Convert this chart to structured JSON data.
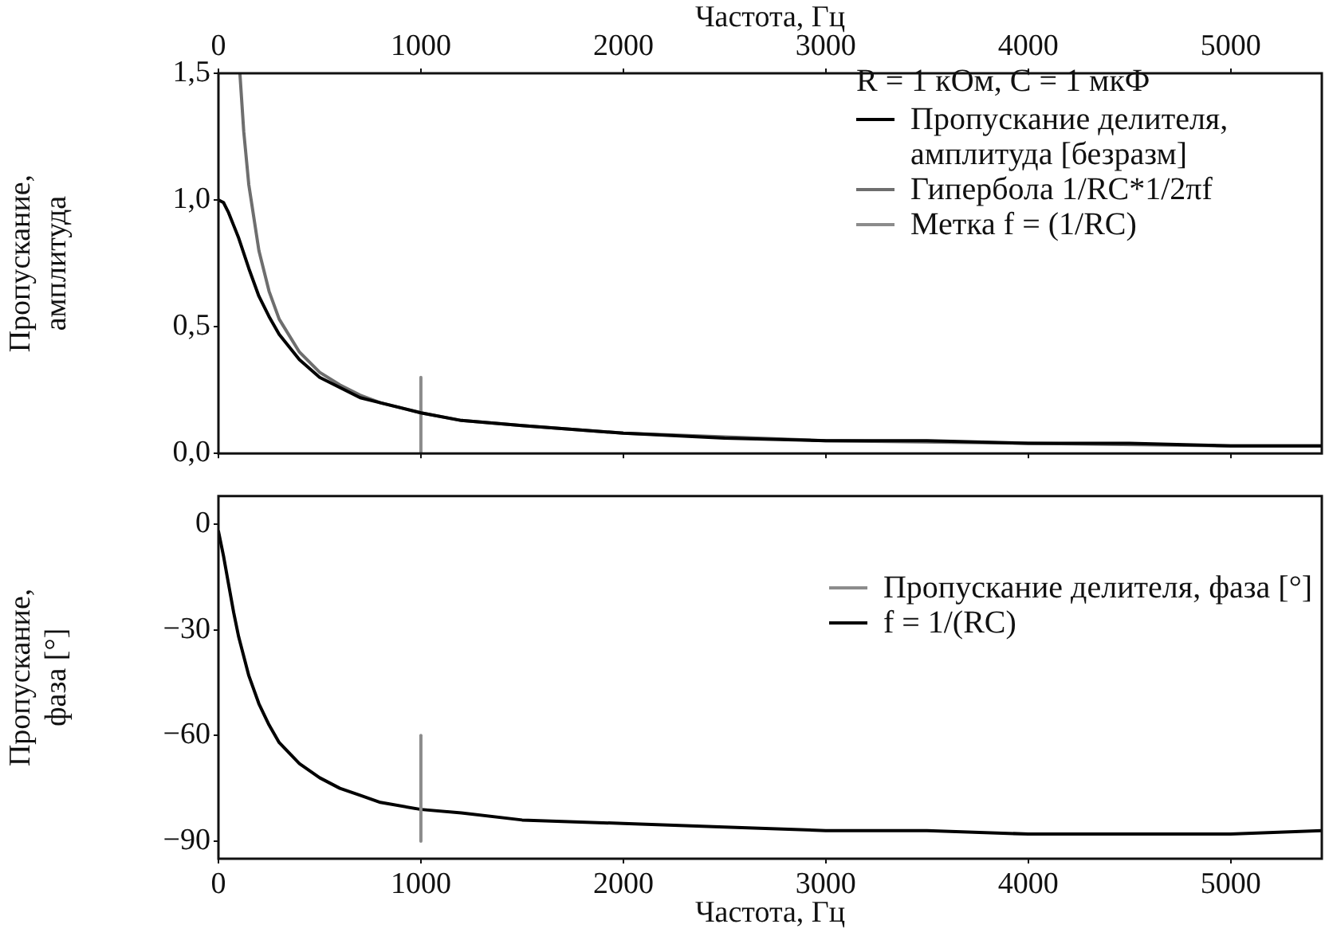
{
  "chart_data": [
    {
      "type": "line",
      "x2label": "Частота, Гц",
      "ylabel": "Пропускание, амплитуда",
      "legend_title": "R = 1 кОм, C = 1 мкФ",
      "xlim": [
        0,
        5450
      ],
      "xticks": [
        0,
        1000,
        2000,
        3000,
        4000,
        5000
      ],
      "x2lim": [
        0,
        5450
      ],
      "x2ticks": [
        0,
        1000,
        2000,
        3000,
        4000,
        5000
      ],
      "ylim": [
        0,
        1.5
      ],
      "yticks": [
        {
          "value": 0,
          "label": "0,0"
        },
        {
          "value": 0.5,
          "label": "0,5"
        },
        {
          "value": 1,
          "label": "1,0"
        },
        {
          "value": 1.5,
          "label": "1,5"
        }
      ],
      "grid": false,
      "legend": "top right",
      "marker": "none",
      "line_style": "solid",
      "tick_labels": "y",
      "series": [
        {
          "name": "Пропускание делителя, амплитуда [безразм]",
          "color": "#000000",
          "x": [
            0,
            25,
            50,
            75,
            100,
            150,
            200,
            250,
            300,
            400,
            500,
            600,
            700,
            800,
            1000,
            1200,
            1500,
            2000,
            2500,
            3000,
            3500,
            4000,
            4500,
            5000,
            5450
          ],
          "values": [
            1.0,
            0.99,
            0.95,
            0.9,
            0.85,
            0.73,
            0.62,
            0.54,
            0.47,
            0.37,
            0.3,
            0.26,
            0.22,
            0.2,
            0.16,
            0.13,
            0.11,
            0.08,
            0.06,
            0.05,
            0.05,
            0.04,
            0.04,
            0.03,
            0.03
          ]
        },
        {
          "name": "Гипербола  1/RC*1/2πf",
          "color": "#6e6e6e",
          "x": [
            106,
            125,
            150,
            200,
            250,
            300,
            400,
            500,
            600,
            700,
            800,
            1000,
            1200,
            1500,
            2000,
            3000,
            4000,
            5000,
            5450
          ],
          "values": [
            1.5,
            1.27,
            1.06,
            0.8,
            0.64,
            0.53,
            0.4,
            0.32,
            0.27,
            0.23,
            0.2,
            0.16,
            0.13,
            0.11,
            0.08,
            0.05,
            0.04,
            0.03,
            0.03
          ]
        },
        {
          "name": "Метка f = (1/RC)",
          "color": "#8c8c8c",
          "x": [
            1000,
            1000
          ],
          "values": [
            0,
            0.3
          ]
        }
      ]
    },
    {
      "type": "line",
      "xlabel": "Частота, Гц",
      "ylabel": "Пропускание, фаза [°]",
      "xlim": [
        0,
        5450
      ],
      "xticks": [
        0,
        1000,
        2000,
        3000,
        4000,
        5000
      ],
      "ylim": [
        -95,
        8
      ],
      "yticks": [
        0,
        {
          "value": -30,
          "label": "−30"
        },
        {
          "value": -60,
          "label": "−60"
        },
        {
          "value": -90,
          "label": "−90"
        }
      ],
      "grid": false,
      "legend": "right",
      "marker": "none",
      "line_style": "solid",
      "series": [
        {
          "name": "Пропускание делителя, фаза [°]",
          "color": "#8c8c8c",
          "x": [
            1000,
            1000
          ],
          "values": [
            -90,
            -60
          ]
        },
        {
          "name": "f = 1/(RC)",
          "color": "#000000",
          "x": [
            0,
            25,
            50,
            75,
            100,
            150,
            200,
            250,
            300,
            400,
            500,
            600,
            700,
            800,
            1000,
            1200,
            1500,
            2000,
            2500,
            3000,
            3500,
            4000,
            4500,
            5000,
            5450
          ],
          "values": [
            -2,
            -9,
            -17,
            -25,
            -32,
            -43,
            -51,
            -57,
            -62,
            -68,
            -72,
            -75,
            -77,
            -79,
            -81,
            -82,
            -84,
            -85,
            -86,
            -87,
            -87,
            -88,
            -88,
            -88,
            -87
          ]
        }
      ]
    }
  ]
}
